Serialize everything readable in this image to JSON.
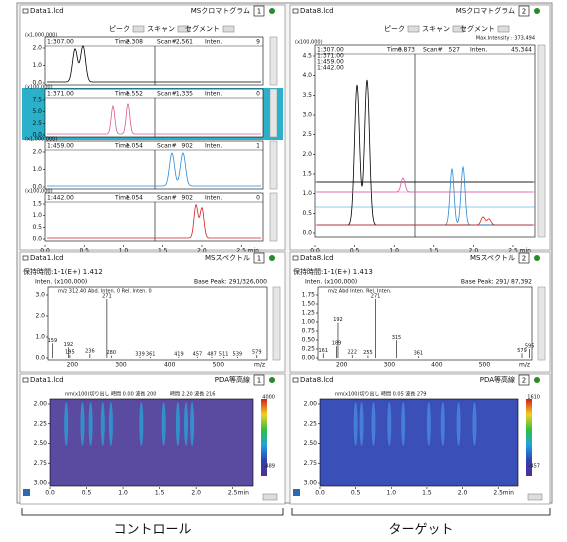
{
  "control": {
    "chrom": {
      "file": "Data1.lcd",
      "title": "MSクロマトグラム",
      "number": "1",
      "controls": [
        "ピーク",
        "スキャン",
        "セグメント"
      ],
      "labels": {
        "time": "Time",
        "scan": "Scan#",
        "inten": "Inten."
      },
      "traces": [
        {
          "scale": "(x1,000,000)",
          "channel": "1:307.00",
          "time": "2.308",
          "scan": "2,561",
          "inten": "9",
          "yticks": [
            "2.0",
            "1.0",
            "0.0"
          ]
        },
        {
          "scale": "(x100,000)",
          "channel": "1:371.00",
          "time": "1.552",
          "scan": "1,335",
          "inten": "0",
          "yticks": [
            "7.5",
            "5.0",
            "2.5",
            "0.0"
          ]
        },
        {
          "scale": "(x1,000,000)",
          "channel": "1:459.00",
          "time": "1.054",
          "scan": "902",
          "inten": "1",
          "yticks": [
            "2.0",
            "1.0",
            "0.0"
          ]
        },
        {
          "scale": "(x100,000)",
          "channel": "1:442.00",
          "time": "1.054",
          "scan": "902",
          "inten": "0",
          "yticks": [
            "1.5",
            "1.0",
            "0.5",
            "0.0"
          ]
        }
      ],
      "xticks": [
        "0.0",
        "0.5",
        "1.0",
        "1.5",
        "2.0",
        "2.5"
      ],
      "xunit": "min"
    },
    "spectrum": {
      "file": "Data1.lcd",
      "title": "MSスペクトル",
      "number": "1",
      "retention": "保持時間:1-1(E+) 1.412",
      "inten": "Inten. (x100,000)",
      "base": "Base Peak: 291/326,000",
      "header": "m/z 312.40  Abd.  Inten.  0  Rel. Inten.  0",
      "yticks": [
        "3.0",
        "2.0",
        "1.0",
        "0.0"
      ],
      "xticks": [
        "200",
        "300",
        "400",
        "500"
      ],
      "xunit": "m/z",
      "peaks": [
        "159",
        "192",
        "195",
        "236",
        "280",
        "271",
        "339",
        "361",
        "419",
        "457",
        "487",
        "511",
        "539",
        "579"
      ]
    },
    "pda": {
      "file": "Data1.lcd",
      "title": "PDA等高線",
      "number": "1",
      "cut": "nm(x100)切り出し 時間 0.00 波長 200",
      "cut2": "時間 2.20 波長 216",
      "yticks": [
        "2.00",
        "2.25",
        "2.50",
        "2.75",
        "3.00"
      ],
      "scale": [
        "4000",
        "-489"
      ],
      "xticks": [
        "0.0",
        "0.5",
        "1.0",
        "1.5",
        "2.0",
        "2.5"
      ],
      "xunit": "min"
    },
    "caption": "コントロール"
  },
  "target": {
    "chrom": {
      "file": "Data8.lcd",
      "title": "MSクロマトグラム",
      "number": "2",
      "controls": [
        "ピーク",
        "スキャン",
        "セグメント"
      ],
      "labels": {
        "time": "Time",
        "scan": "Scan#",
        "inten": "Inten."
      },
      "max": "Max.Intensity : 373,494",
      "scale": "(x100,000)",
      "channels": [
        "1:307.00",
        "1:371.00",
        "1:459.00",
        "1:442.00"
      ],
      "time": "0.873",
      "scan": "527",
      "inten": "45,344",
      "yticks": [
        "4.5",
        "4.0",
        "3.5",
        "3.0",
        "2.5",
        "2.0",
        "1.5",
        "1.0",
        "0.5",
        "0.0"
      ],
      "xticks": [
        "0.0",
        "0.5",
        "1.0",
        "1.5",
        "2.0",
        "2.5"
      ],
      "xunit": "min"
    },
    "spectrum": {
      "file": "Data8.lcd",
      "title": "MSスペクトル",
      "number": "2",
      "retention": "保持時間:1-1(E+) 1.413",
      "inten": "Inten. (x100,000)",
      "base": "Base Peak: 291/ 87,392",
      "header": "m/z  Abd  Inten.  Rel. Inten.",
      "yticks": [
        "1.75",
        "1.50",
        "1.25",
        "1.00",
        "0.75",
        "0.50",
        "0.25",
        "0.00"
      ],
      "xticks": [
        "200",
        "300",
        "400",
        "500"
      ],
      "xunit": "m/z",
      "peaks": [
        "161",
        "192",
        "189",
        "222",
        "255",
        "271",
        "315",
        "361",
        "595",
        "579"
      ]
    },
    "pda": {
      "file": "Data8.lcd",
      "title": "PDA等高線",
      "number": "2",
      "cut": "nm(x100)切り出し 時間 0.05 波長 279",
      "yticks": [
        "2.00",
        "2.25",
        "2.50",
        "2.75",
        "3.00"
      ],
      "scale": [
        "1610",
        "-457"
      ],
      "xticks": [
        "0.0",
        "0.5",
        "1.0",
        "1.5",
        "2.0",
        "2.5"
      ],
      "xunit": "min"
    },
    "caption": "ターゲット"
  }
}
